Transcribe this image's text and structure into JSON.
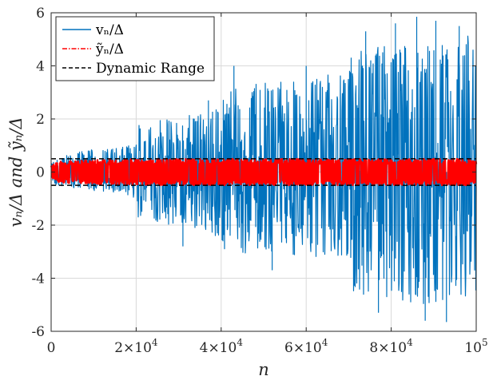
{
  "chart_data": {
    "type": "line",
    "xlabel": "n",
    "ylabel": "vₙ/Δ and ỹₙ/Δ",
    "xlim": [
      0,
      100000
    ],
    "ylim": [
      -6,
      6
    ],
    "x_ticks": [
      {
        "value": 0,
        "mantissa": "0",
        "exp": ""
      },
      {
        "value": 20000,
        "mantissa": "2×10",
        "exp": "4"
      },
      {
        "value": 40000,
        "mantissa": "4×10",
        "exp": "4"
      },
      {
        "value": 60000,
        "mantissa": "6×10",
        "exp": "4"
      },
      {
        "value": 80000,
        "mantissa": "8×10",
        "exp": "4"
      },
      {
        "value": 100000,
        "mantissa": "10",
        "exp": "5"
      }
    ],
    "y_ticks": [
      {
        "value": -6,
        "label": "-6"
      },
      {
        "value": -4,
        "label": "-4"
      },
      {
        "value": -2,
        "label": "-2"
      },
      {
        "value": 0,
        "label": "0"
      },
      {
        "value": 2,
        "label": "2"
      },
      {
        "value": 4,
        "label": "4"
      },
      {
        "value": 6,
        "label": "6"
      }
    ],
    "grid": true,
    "legend_position": "top-left",
    "series": [
      {
        "name": "vₙ/Δ",
        "color": "#0072bd",
        "style": "solid",
        "envelope": [
          {
            "x": 0,
            "lower": -0.3,
            "upper": 0.3
          },
          {
            "x": 1000,
            "lower": -0.5,
            "upper": 0.5
          },
          {
            "x": 5000,
            "lower": -0.6,
            "upper": 0.65
          },
          {
            "x": 10000,
            "lower": -0.7,
            "upper": 0.85
          },
          {
            "x": 15000,
            "lower": -0.8,
            "upper": 0.9
          },
          {
            "x": 20000,
            "lower": -0.95,
            "upper": 1.0
          },
          {
            "x": 20500,
            "lower": -1.8,
            "upper": 1.8
          },
          {
            "x": 25000,
            "lower": -1.9,
            "upper": 1.9
          },
          {
            "x": 30000,
            "lower": -2.0,
            "upper": 2.0
          },
          {
            "x": 35000,
            "lower": -2.1,
            "upper": 2.1
          },
          {
            "x": 40000,
            "lower": -2.4,
            "upper": 2.3
          },
          {
            "x": 40500,
            "lower": -2.8,
            "upper": 3.0
          },
          {
            "x": 50000,
            "lower": -3.0,
            "upper": 3.2
          },
          {
            "x": 60000,
            "lower": -3.1,
            "upper": 3.4
          },
          {
            "x": 70000,
            "lower": -3.2,
            "upper": 3.6
          },
          {
            "x": 70500,
            "lower": -4.3,
            "upper": 4.4
          },
          {
            "x": 80000,
            "lower": -4.6,
            "upper": 4.6
          },
          {
            "x": 90000,
            "lower": -4.8,
            "upper": 4.8
          },
          {
            "x": 100000,
            "lower": -4.8,
            "upper": 4.9
          }
        ],
        "extremes": [
          {
            "x": 86000,
            "value": 5.85
          },
          {
            "x": 90500,
            "value": 5.7
          },
          {
            "x": 81000,
            "value": 5.6
          },
          {
            "x": 74000,
            "value": 5.3
          },
          {
            "x": 96000,
            "value": 5.5
          },
          {
            "x": 88000,
            "value": -5.6
          },
          {
            "x": 93000,
            "value": -5.65
          },
          {
            "x": 77000,
            "value": -5.3
          },
          {
            "x": 43000,
            "value": 4.0
          },
          {
            "x": 60000,
            "value": 4.0
          },
          {
            "x": 52000,
            "value": -3.7
          },
          {
            "x": 37000,
            "value": 2.7
          },
          {
            "x": 31000,
            "value": -2.8
          }
        ]
      },
      {
        "name": "ỹₙ/Δ",
        "color": "#ff0000",
        "style": "dash-dot",
        "envelope": [
          {
            "x": 0,
            "lower": -0.25,
            "upper": 0.25
          },
          {
            "x": 2000,
            "lower": -0.4,
            "upper": 0.4
          },
          {
            "x": 10000,
            "lower": -0.45,
            "upper": 0.45
          },
          {
            "x": 20000,
            "lower": -0.5,
            "upper": 0.5
          },
          {
            "x": 100000,
            "lower": -0.5,
            "upper": 0.5
          }
        ]
      },
      {
        "name": "Dynamic Range",
        "color": "#000000",
        "style": "dashed",
        "lines": [
          0.5,
          -0.5
        ]
      }
    ]
  }
}
